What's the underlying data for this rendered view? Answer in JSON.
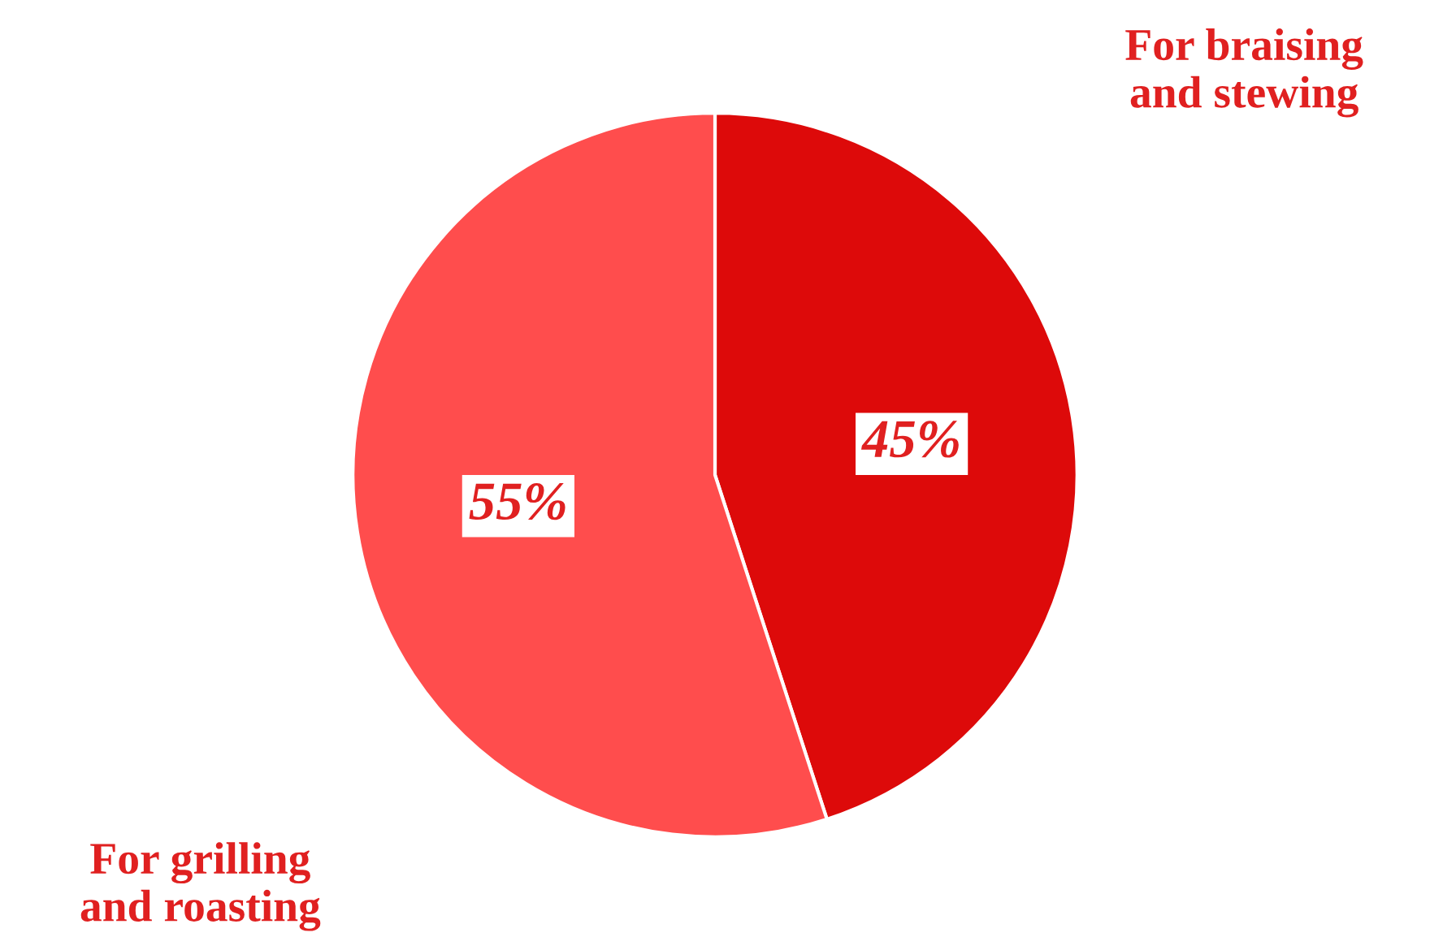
{
  "chart_data": {
    "type": "pie",
    "categories": [
      "For braising and stewing",
      "For grilling and roasting"
    ],
    "values": [
      45,
      55
    ],
    "colors": [
      "#dd0a0a",
      "#ff4d4d"
    ],
    "value_labels": [
      "45%",
      "55%"
    ],
    "legend": false
  }
}
